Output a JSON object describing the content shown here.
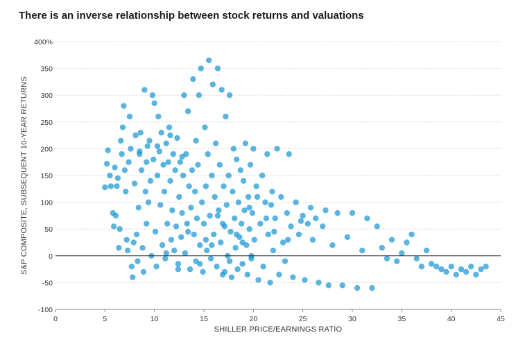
{
  "chart_data": {
    "type": "scatter",
    "title": "There is an inverse relationship between stock returns and valuations",
    "xlabel": "SHILLER PRICE/EARNINGS RATIO",
    "ylabel": "S&P COMPOSITE, SUBSEQUENT 10-YEAR RETURNS",
    "xlim": [
      0,
      45
    ],
    "ylim": [
      -100,
      400
    ],
    "x_ticks": [
      "0",
      "5",
      "10",
      "15",
      "20",
      "25",
      "30",
      "35",
      "40",
      "45"
    ],
    "y_ticks": [
      "400%",
      "350",
      "300",
      "250",
      "200",
      "150",
      "100",
      "50",
      "0",
      "-50",
      "-100"
    ],
    "grid": "horizontal-dashed",
    "color": "#1a97d4",
    "series": [
      {
        "points": [
          [
            5.0,
            128
          ],
          [
            5.2,
            172
          ],
          [
            5.3,
            197
          ],
          [
            5.5,
            150
          ],
          [
            5.6,
            130
          ],
          [
            5.8,
            80
          ],
          [
            5.9,
            55
          ],
          [
            6.0,
            165
          ],
          [
            6.1,
            75
          ],
          [
            6.3,
            145
          ],
          [
            6.5,
            50
          ],
          [
            6.4,
            15
          ],
          [
            6.6,
            215
          ],
          [
            6.7,
            190
          ],
          [
            6.8,
            240
          ],
          [
            6.9,
            280
          ],
          [
            7.0,
            160
          ],
          [
            7.1,
            120
          ],
          [
            7.2,
            30
          ],
          [
            7.3,
            10
          ],
          [
            7.5,
            260
          ],
          [
            7.6,
            200
          ],
          [
            7.7,
            -20
          ],
          [
            7.8,
            -40
          ],
          [
            7.9,
            25
          ],
          [
            8.0,
            135
          ],
          [
            8.1,
            225
          ],
          [
            8.2,
            40
          ],
          [
            8.3,
            -10
          ],
          [
            8.4,
            90
          ],
          [
            8.5,
            190
          ],
          [
            8.6,
            230
          ],
          [
            8.7,
            160
          ],
          [
            8.8,
            15
          ],
          [
            8.9,
            -30
          ],
          [
            9.0,
            310
          ],
          [
            9.1,
            120
          ],
          [
            9.2,
            60
          ],
          [
            9.3,
            205
          ],
          [
            9.4,
            100
          ],
          [
            9.5,
            215
          ],
          [
            9.6,
            140
          ],
          [
            9.7,
            0
          ],
          [
            9.8,
            300
          ],
          [
            9.9,
            180
          ],
          [
            10.0,
            285
          ],
          [
            10.1,
            45
          ],
          [
            10.2,
            -20
          ],
          [
            10.3,
            150
          ],
          [
            10.4,
            260
          ],
          [
            10.5,
            195
          ],
          [
            10.6,
            95
          ],
          [
            10.7,
            230
          ],
          [
            10.8,
            20
          ],
          [
            10.9,
            170
          ],
          [
            11.0,
            120
          ],
          [
            11.1,
            -5
          ],
          [
            11.2,
            210
          ],
          [
            11.3,
            60
          ],
          [
            11.4,
            175
          ],
          [
            11.5,
            240
          ],
          [
            11.6,
            140
          ],
          [
            11.7,
            30
          ],
          [
            11.8,
            85
          ],
          [
            11.9,
            190
          ],
          [
            12.0,
            10
          ],
          [
            12.1,
            160
          ],
          [
            12.2,
            55
          ],
          [
            12.3,
            220
          ],
          [
            12.4,
            -15
          ],
          [
            12.5,
            110
          ],
          [
            12.6,
            175
          ],
          [
            12.7,
            35
          ],
          [
            12.8,
            80
          ],
          [
            12.9,
            150
          ],
          [
            13.0,
            300
          ],
          [
            13.1,
            5
          ],
          [
            13.2,
            190
          ],
          [
            13.3,
            60
          ],
          [
            13.4,
            270
          ],
          [
            13.5,
            130
          ],
          [
            13.6,
            -25
          ],
          [
            13.7,
            90
          ],
          [
            13.8,
            160
          ],
          [
            13.9,
            330
          ],
          [
            14.0,
            40
          ],
          [
            14.1,
            120
          ],
          [
            14.2,
            -10
          ],
          [
            14.3,
            70
          ],
          [
            14.4,
            170
          ],
          [
            14.5,
            300
          ],
          [
            14.6,
            20
          ],
          [
            14.7,
            350
          ],
          [
            14.8,
            100
          ],
          [
            14.9,
            -30
          ],
          [
            15.0,
            60
          ],
          [
            15.1,
            240
          ],
          [
            15.2,
            130
          ],
          [
            15.3,
            10
          ],
          [
            15.4,
            190
          ],
          [
            15.5,
            365
          ],
          [
            15.6,
            75
          ],
          [
            15.7,
            -5
          ],
          [
            15.8,
            150
          ],
          [
            15.9,
            320
          ],
          [
            16.0,
            40
          ],
          [
            16.1,
            110
          ],
          [
            16.2,
            210
          ],
          [
            16.3,
            -20
          ],
          [
            16.4,
            350
          ],
          [
            16.5,
            85
          ],
          [
            16.6,
            170
          ],
          [
            16.7,
            25
          ],
          [
            16.8,
            310
          ],
          [
            16.9,
            -35
          ],
          [
            17.0,
            130
          ],
          [
            17.1,
            55
          ],
          [
            17.2,
            260
          ],
          [
            17.3,
            95
          ],
          [
            17.4,
            0
          ],
          [
            17.5,
            150
          ],
          [
            17.6,
            300
          ],
          [
            17.7,
            45
          ],
          [
            17.8,
            -40
          ],
          [
            17.9,
            120
          ],
          [
            18.0,
            200
          ],
          [
            18.1,
            70
          ],
          [
            18.2,
            15
          ],
          [
            18.3,
            180
          ],
          [
            18.4,
            -25
          ],
          [
            18.5,
            100
          ],
          [
            18.6,
            35
          ],
          [
            18.7,
            160
          ],
          [
            18.8,
            60
          ],
          [
            18.9,
            -15
          ],
          [
            19.0,
            140
          ],
          [
            19.1,
            85
          ],
          [
            19.2,
            210
          ],
          [
            19.3,
            20
          ],
          [
            19.4,
            -35
          ],
          [
            19.5,
            110
          ],
          [
            19.6,
            50
          ],
          [
            19.7,
            170
          ],
          [
            19.8,
            0
          ],
          [
            19.9,
            80
          ],
          [
            20.0,
            200
          ],
          [
            20.1,
            30
          ],
          [
            20.3,
            130
          ],
          [
            20.5,
            -45
          ],
          [
            20.7,
            60
          ],
          [
            20.9,
            150
          ],
          [
            21.0,
            -20
          ],
          [
            21.2,
            100
          ],
          [
            21.4,
            190
          ],
          [
            21.5,
            40
          ],
          [
            21.7,
            -50
          ],
          [
            21.9,
            120
          ],
          [
            22.0,
            10
          ],
          [
            22.2,
            70
          ],
          [
            22.4,
            200
          ],
          [
            22.6,
            -35
          ],
          [
            22.8,
            110
          ],
          [
            23.0,
            25
          ],
          [
            23.2,
            -10
          ],
          [
            23.4,
            80
          ],
          [
            23.6,
            190
          ],
          [
            23.8,
            55
          ],
          [
            24.0,
            -40
          ],
          [
            24.3,
            100
          ],
          [
            24.6,
            40
          ],
          [
            25.0,
            75
          ],
          [
            25.2,
            -45
          ],
          [
            25.5,
            60
          ],
          [
            25.8,
            90
          ],
          [
            26.0,
            30
          ],
          [
            26.3,
            70
          ],
          [
            26.6,
            -50
          ],
          [
            27.0,
            55
          ],
          [
            27.3,
            85
          ],
          [
            27.6,
            -55
          ],
          [
            28.0,
            20
          ],
          [
            28.5,
            80
          ],
          [
            29.0,
            -55
          ],
          [
            29.5,
            35
          ],
          [
            30.0,
            80
          ],
          [
            30.5,
            -60
          ],
          [
            31.0,
            10
          ],
          [
            31.5,
            70
          ],
          [
            32.0,
            -60
          ],
          [
            32.5,
            55
          ],
          [
            33.0,
            15
          ],
          [
            33.5,
            -5
          ],
          [
            34.0,
            30
          ],
          [
            34.5,
            -10
          ],
          [
            35.0,
            5
          ],
          [
            35.5,
            25
          ],
          [
            36.0,
            40
          ],
          [
            36.5,
            -5
          ],
          [
            37.0,
            -20
          ],
          [
            37.5,
            10
          ],
          [
            38.0,
            -15
          ],
          [
            38.5,
            -20
          ],
          [
            39.0,
            -25
          ],
          [
            39.5,
            -30
          ],
          [
            40.0,
            -20
          ],
          [
            40.5,
            -35
          ],
          [
            41.0,
            -25
          ],
          [
            41.5,
            -30
          ],
          [
            42.0,
            -20
          ],
          [
            42.5,
            -35
          ],
          [
            43.0,
            -25
          ],
          [
            43.5,
            -20
          ],
          [
            8.5,
            195
          ],
          [
            9.2,
            175
          ],
          [
            10.3,
            205
          ],
          [
            11.6,
            225
          ],
          [
            12.8,
            185
          ],
          [
            14.2,
            215
          ],
          [
            6.2,
            130
          ],
          [
            7.4,
            175
          ],
          [
            15.8,
            20
          ],
          [
            16.9,
            60
          ],
          [
            17.6,
            -10
          ],
          [
            18.3,
            40
          ],
          [
            19.6,
            90
          ],
          [
            20.4,
            110
          ],
          [
            21.3,
            70
          ],
          [
            22.1,
            45
          ],
          [
            23.5,
            30
          ],
          [
            24.8,
            65
          ],
          [
            13.4,
            45
          ],
          [
            14.6,
            -15
          ],
          [
            15.2,
            30
          ],
          [
            16.4,
            75
          ],
          [
            17.1,
            -30
          ],
          [
            18.9,
            25
          ],
          [
            19.8,
            -5
          ],
          [
            21.8,
            95
          ],
          [
            11.2,
            5
          ],
          [
            12.4,
            -25
          ]
        ]
      }
    ]
  }
}
